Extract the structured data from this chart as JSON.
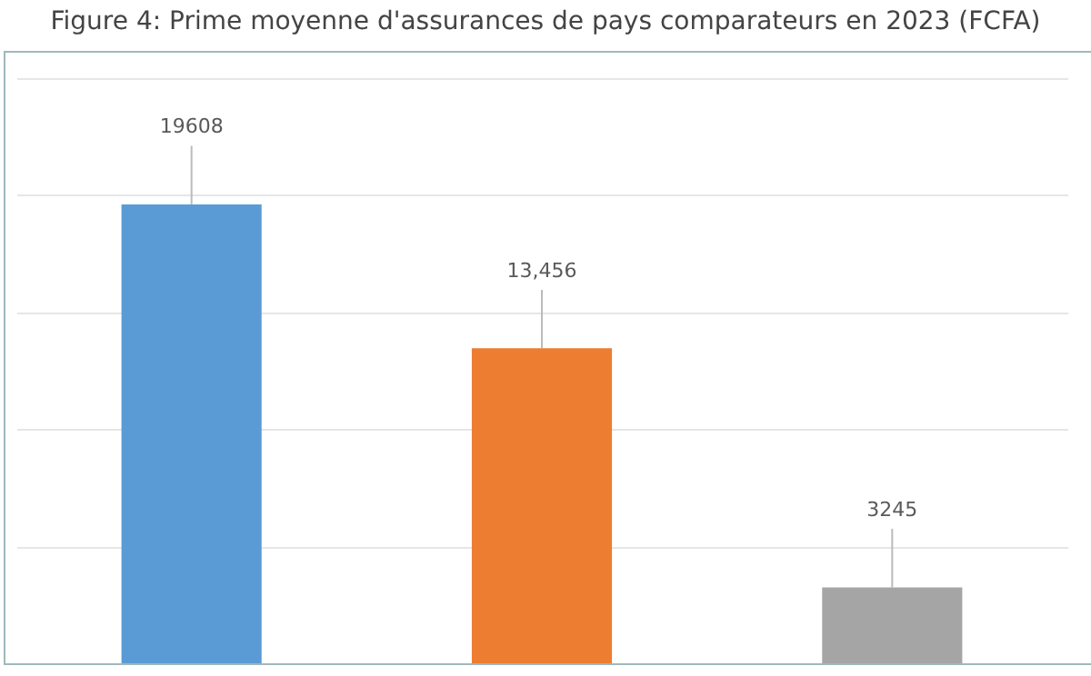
{
  "chart_data": {
    "type": "bar",
    "title": "Figure 4: Prime moyenne d'assurances de pays comparateurs en 2023 (FCFA)",
    "categories": [
      null,
      null,
      null
    ],
    "values": [
      19608,
      13456,
      3245
    ],
    "colors": [
      "#5b9bd5",
      "#ed7d31",
      "#a5a5a5"
    ],
    "value_labels": [
      "19608",
      "13,456",
      "3245"
    ],
    "ylim": [
      0,
      25000
    ],
    "yticks": [
      {
        "value": 0,
        "label": null
      },
      {
        "value": 5000,
        "label": null
      },
      {
        "value": 10000,
        "label": null
      },
      {
        "value": 15000,
        "label": null
      },
      {
        "value": 20000,
        "label": null
      },
      {
        "value": 25000,
        "label": null
      }
    ],
    "grid": "y",
    "tick_labels": false
  }
}
